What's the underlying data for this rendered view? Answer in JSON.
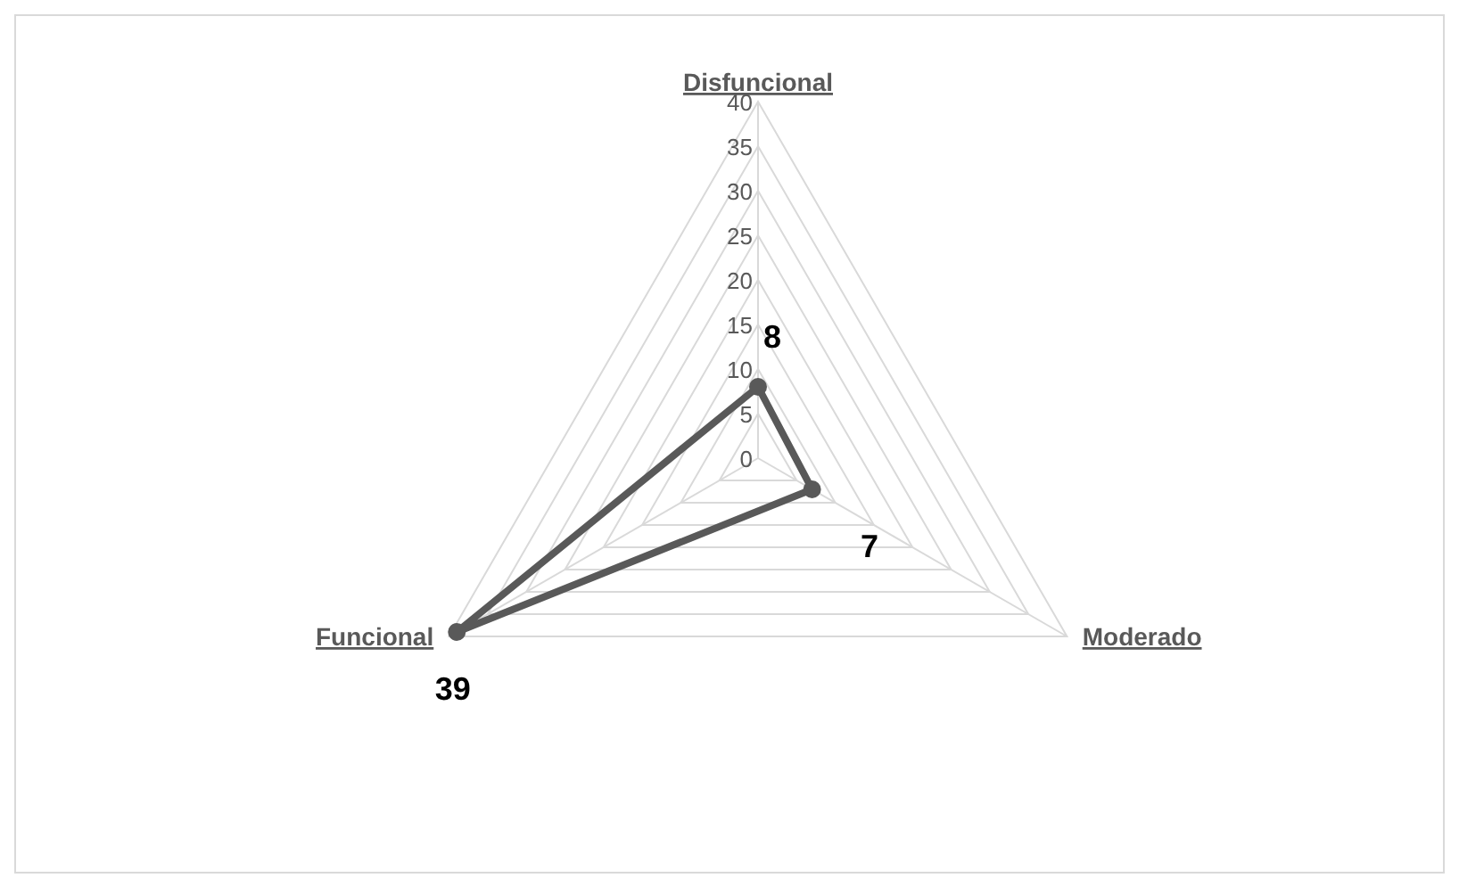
{
  "chart_data": {
    "type": "radar",
    "categories": [
      "Disfuncional",
      "Moderado",
      "Funcional"
    ],
    "series": [
      {
        "color": "#595959",
        "values": [
          8,
          7,
          39
        ]
      }
    ],
    "ylim": [
      0,
      40
    ],
    "yticks": [
      0,
      5,
      10,
      15,
      20,
      25,
      30,
      35,
      40
    ],
    "grid": true,
    "marker": "circle",
    "data_labels": true
  }
}
